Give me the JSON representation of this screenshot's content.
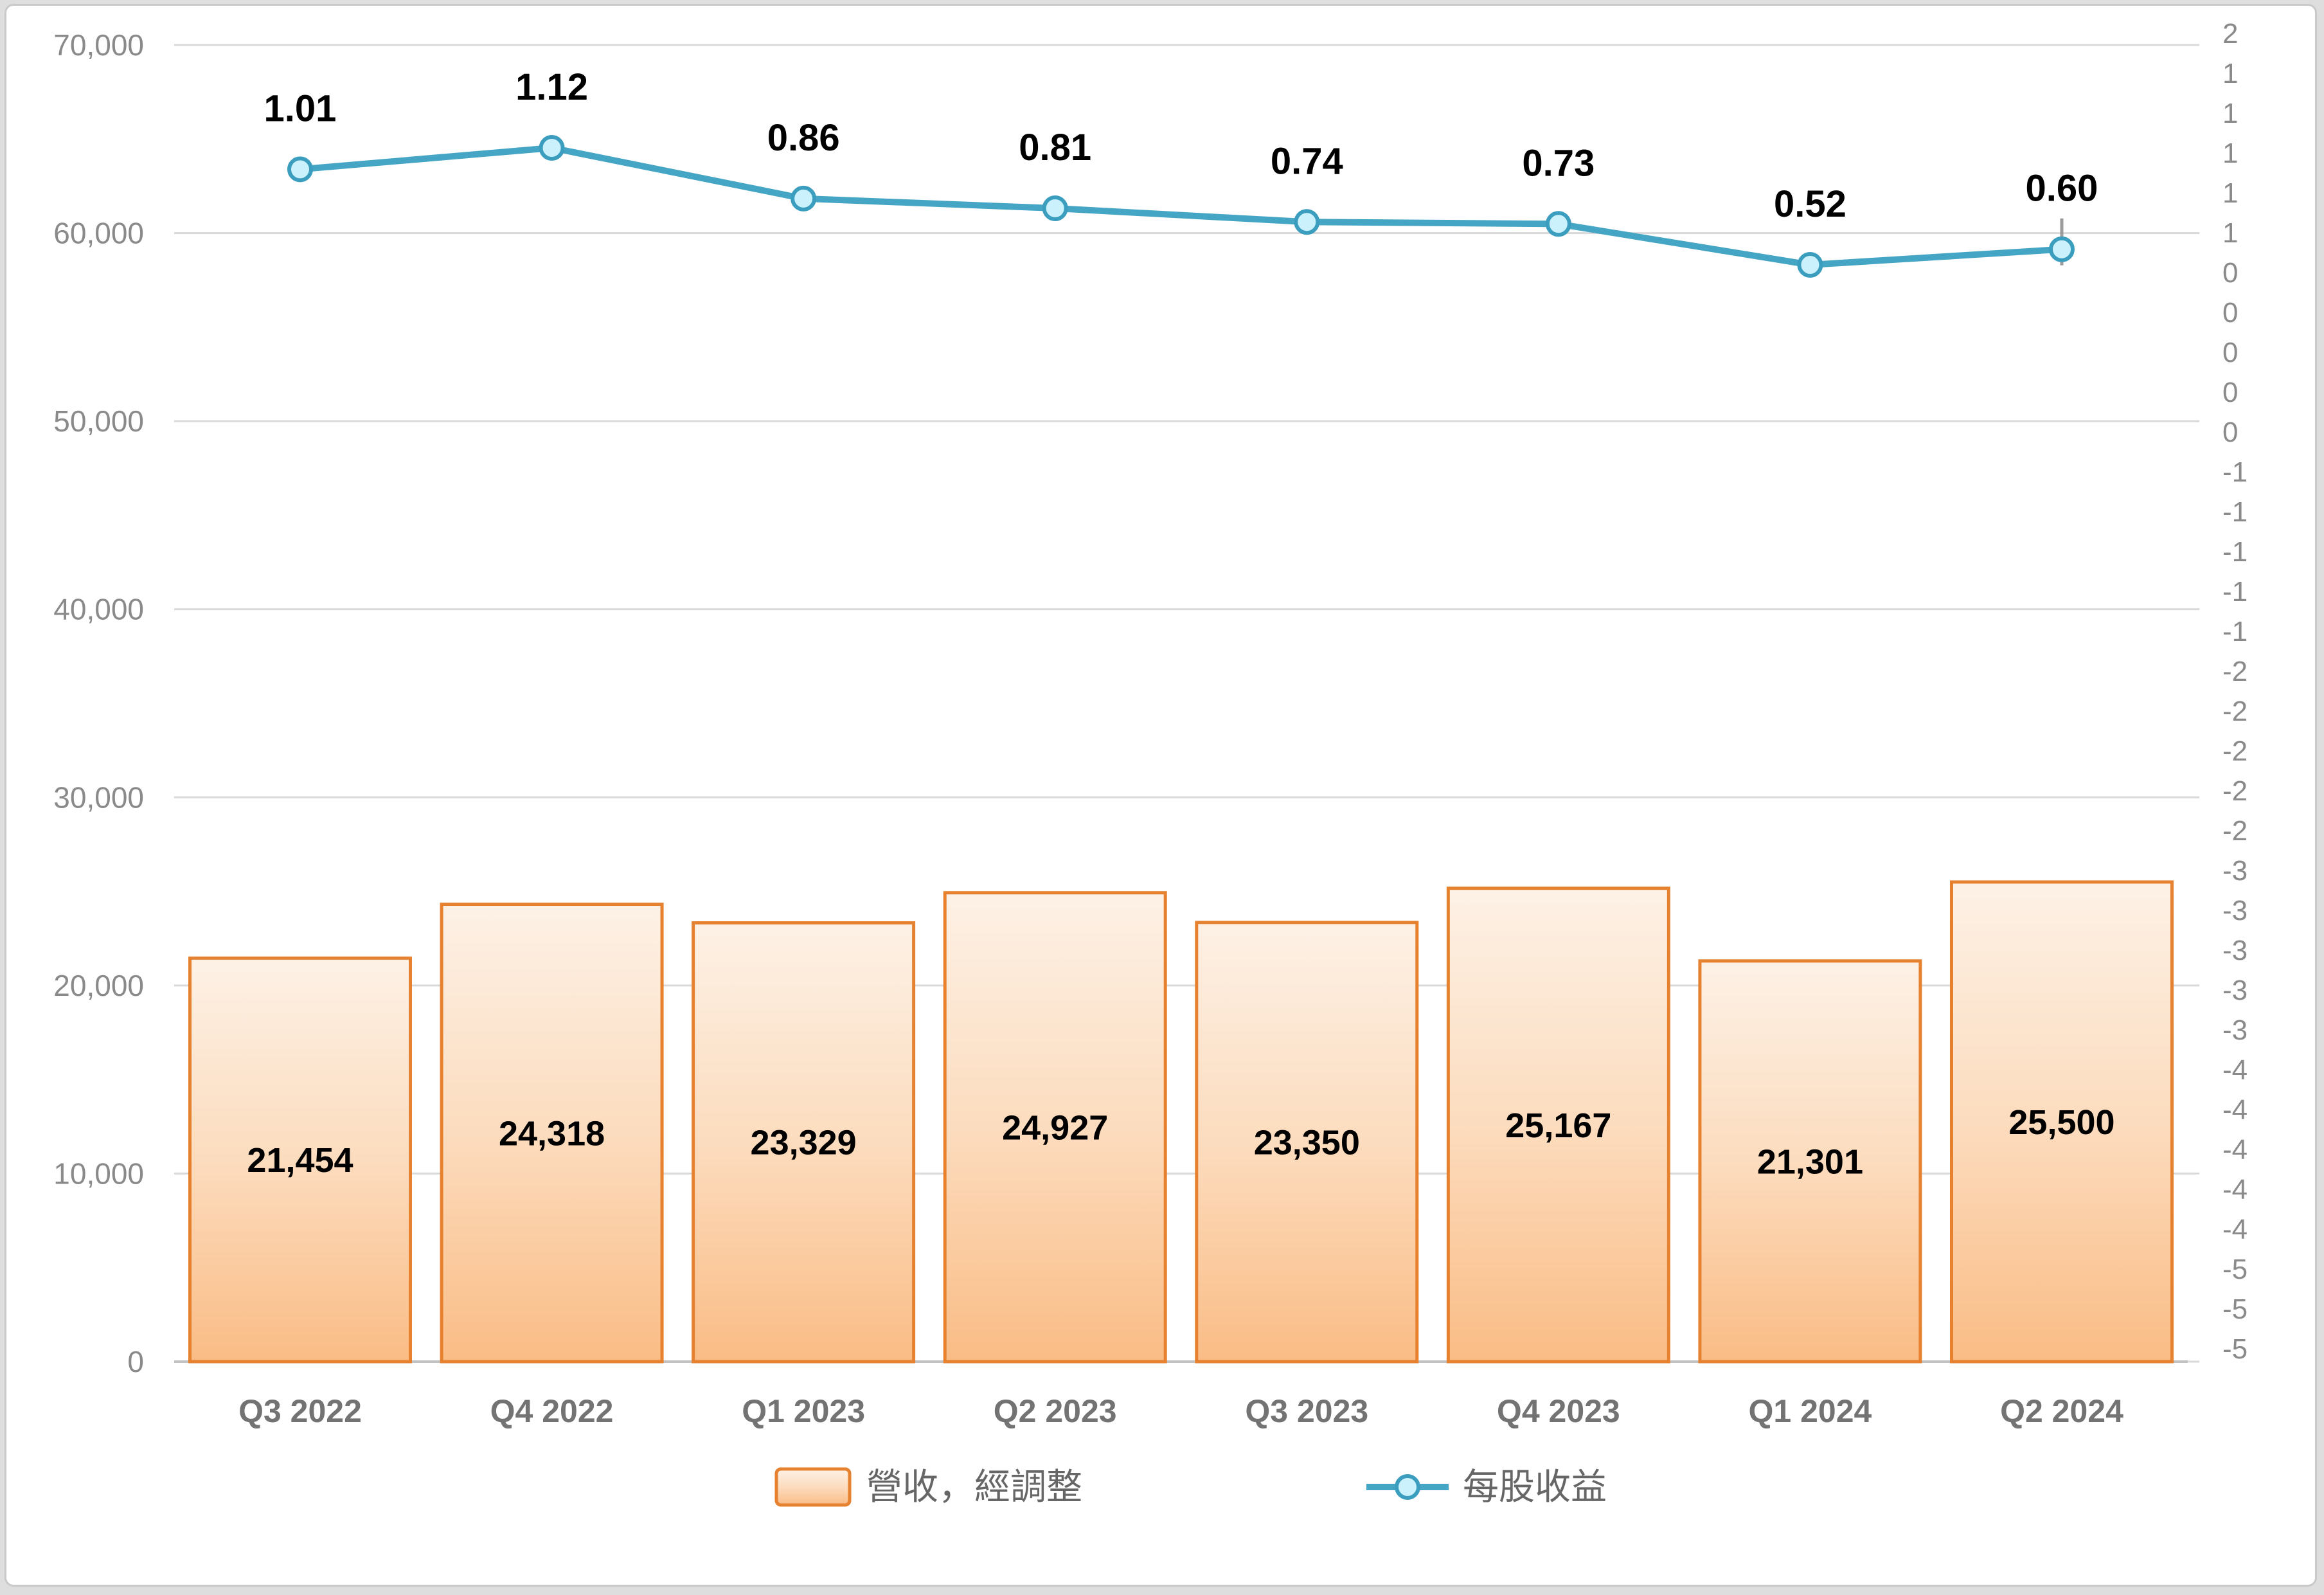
{
  "chart_data": {
    "type": "combo-bar-line",
    "categories": [
      "Q3 2022",
      "Q4 2022",
      "Q1 2023",
      "Q2 2023",
      "Q3 2023",
      "Q4 2023",
      "Q1 2024",
      "Q2 2024"
    ],
    "series": [
      {
        "name": "營收，經調整",
        "type": "bar",
        "values": [
          21454,
          24318,
          23329,
          24927,
          23350,
          25167,
          21301,
          25500
        ],
        "labels": [
          "21,454",
          "24,318",
          "23,329",
          "24,927",
          "23,350",
          "25,167",
          "21,301",
          "25,500"
        ]
      },
      {
        "name": "每股收益",
        "type": "line",
        "values": [
          1.01,
          1.12,
          0.86,
          0.81,
          0.74,
          0.73,
          0.52,
          0.6
        ],
        "labels": [
          "1.01",
          "1.12",
          "0.86",
          "0.81",
          "0.74",
          "0.73",
          "0.52",
          "0.60"
        ]
      }
    ],
    "left_axis": {
      "min": 0,
      "max": 70000,
      "tick_labels": [
        "70,000",
        "60,000",
        "50,000",
        "40,000",
        "30,000",
        "20,000",
        "10,000",
        "0"
      ]
    },
    "right_axis": {
      "tick_labels": [
        "2",
        "1",
        "1",
        "1",
        "1",
        "1",
        "0",
        "0",
        "0",
        "0",
        "0",
        "-1",
        "-1",
        "-1",
        "-1",
        "-1",
        "-2",
        "-2",
        "-2",
        "-2",
        "-2",
        "-3",
        "-3",
        "-3",
        "-3",
        "-3",
        "-4",
        "-4",
        "-4",
        "-4",
        "-4",
        "-5",
        "-5",
        "-5"
      ]
    },
    "legend": [
      {
        "label": "營收，經調整",
        "swatch": "bar"
      },
      {
        "label": "每股收益",
        "swatch": "line-marker"
      }
    ],
    "colors": {
      "bar_border": "#e5812f",
      "bar_fill_top": "#fdf1e6",
      "bar_fill_mid": "#fcdcbe",
      "bar_fill_bottom": "#fabc85",
      "line": "#45a5c5",
      "marker_fill": "#cbf1fc",
      "marker_stroke": "#3c9ebf",
      "gridline": "#d9d9d9",
      "axis_line": "#c2c2c2",
      "whisker": "#9c9c9c"
    },
    "grid": true,
    "legend_position": "bottom"
  }
}
